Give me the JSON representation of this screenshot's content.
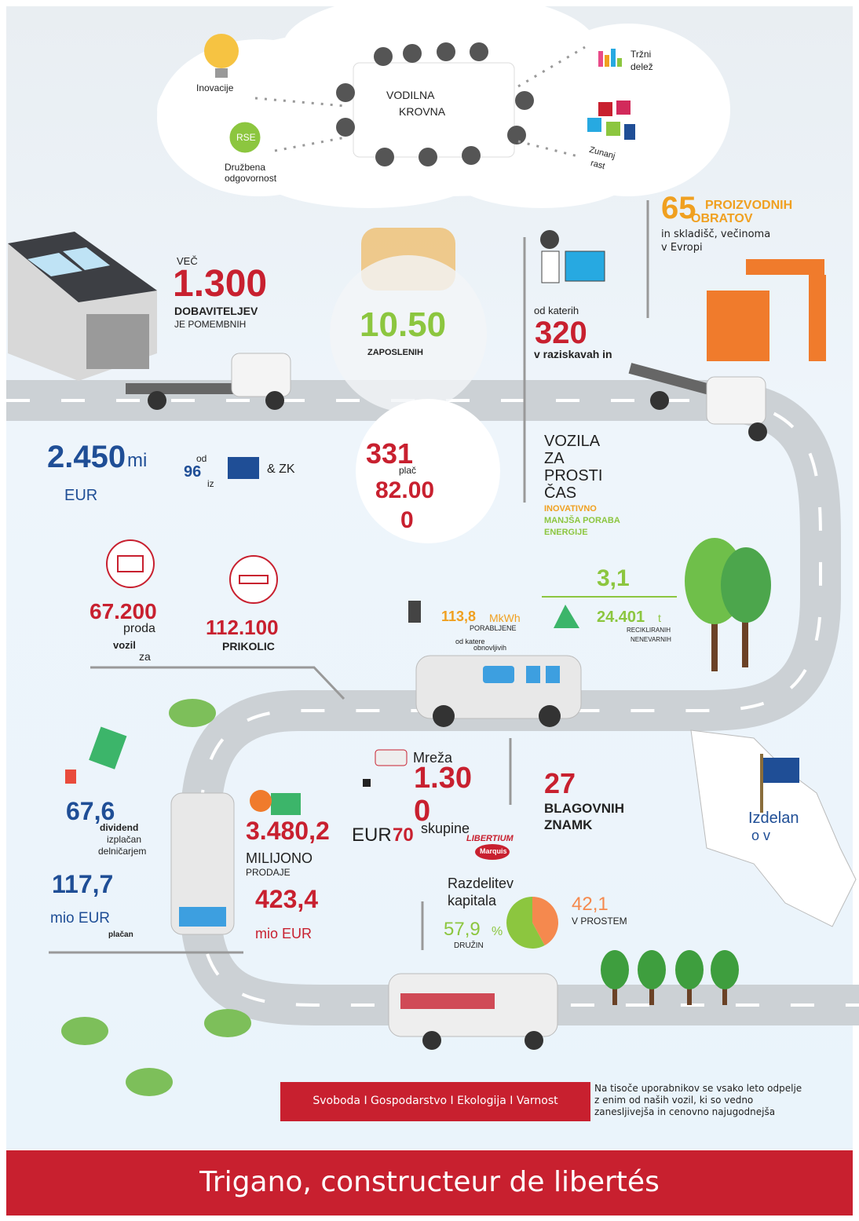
{
  "cloud": {
    "innovation": "Inovacije",
    "leadership": [
      "VODILNA",
      "KROVNA"
    ],
    "market_share": [
      "Tržni",
      "delež"
    ],
    "rse_badge": "RSE",
    "responsibility": [
      "Družbena",
      "odgovornost"
    ],
    "external_growth": [
      "Zunanj",
      "rast"
    ]
  },
  "plants": {
    "number": "65",
    "label": [
      "PROIZVODNIH",
      "OBRATOV"
    ],
    "note": [
      "in skladišč, večinoma",
      "v Evropi"
    ]
  },
  "suppliers": {
    "prefix": "VEČ",
    "number": "1.300",
    "label": "DOBAVITELJEV",
    "note": "JE POMEMBNIH"
  },
  "employees": {
    "number": "10.50",
    "label": "ZAPOSLENIH"
  },
  "research": {
    "prefix": "od katerih",
    "number": "320",
    "label": "v raziskavah in"
  },
  "revenue": {
    "number": "2.450",
    "unit": "mi",
    "currency": "EUR"
  },
  "origin": {
    "prefix": "od",
    "number": "96",
    "suffix": "iz",
    "region": "& ZK"
  },
  "salaries": {
    "number": "331",
    "label": "plač",
    "second": "82.00",
    "second_cut": "0"
  },
  "leisure": {
    "title": [
      "VOZILA",
      "ZA",
      "PROSTI",
      "ČAS"
    ],
    "tags": [
      "INOVATIVNO",
      "MANJŠA PORABA",
      "ENERGIJE"
    ]
  },
  "ecology": {
    "headline": "3,1",
    "energy": {
      "number": "113,8",
      "unit": "MkWh",
      "label": "PORABLJENE",
      "note": [
        "od katere",
        "obnovljivih"
      ]
    },
    "recycling": {
      "number": "24.401",
      "unit": "t",
      "label": [
        "RECIKLIRANIH",
        "NENEVARNIH"
      ]
    }
  },
  "vehicles": {
    "number": "67.200",
    "label": [
      "proda",
      "vozil",
      "za"
    ]
  },
  "trailers": {
    "number": "112.100",
    "label": "PRIKOLIC"
  },
  "network": {
    "label": "Mreža",
    "number": [
      "1.30",
      "0"
    ],
    "suffix": "skupine",
    "currency": "EUR",
    "amount": "70"
  },
  "brands": {
    "number": "27",
    "label": [
      "BLAGOVNIH",
      "ZNAMK"
    ],
    "logos": [
      "LIBERTIUM",
      "Marquis"
    ]
  },
  "made_in": [
    "Izdelan",
    "o v"
  ],
  "dividends": {
    "number": "67,6",
    "label": [
      "dividend",
      "izplačan",
      "delničarjem"
    ]
  },
  "taxes": {
    "number": "117,7",
    "unit": "mio EUR",
    "label": "plačan"
  },
  "sales": {
    "number": "3.480,2",
    "unit": "MILIJONO",
    "label": "PRODAJE"
  },
  "profit": {
    "number": "423,4",
    "unit": "mio EUR"
  },
  "capital": {
    "title": [
      "Razdelitev",
      "kapitala"
    ],
    "segments": [
      {
        "value": 42.1,
        "value_label": "42,1",
        "label": "V PROSTEM",
        "color": "#f5894e"
      },
      {
        "value": 57.9,
        "value_label": "57,9",
        "unit": "%",
        "label": "DRUŽIN",
        "color": "#8cc63f"
      }
    ]
  },
  "values_banner": "Svoboda I Gospodarstvo I Ekologija I Varnost",
  "users_note": [
    "Na tisoče uporabnikov se vsako leto odpelje",
    "z enim od naših vozil, ki so vedno",
    "zanesljivejša in cenovno najugodnejša"
  ],
  "footer": "Trigano, constructeur de libertés"
}
